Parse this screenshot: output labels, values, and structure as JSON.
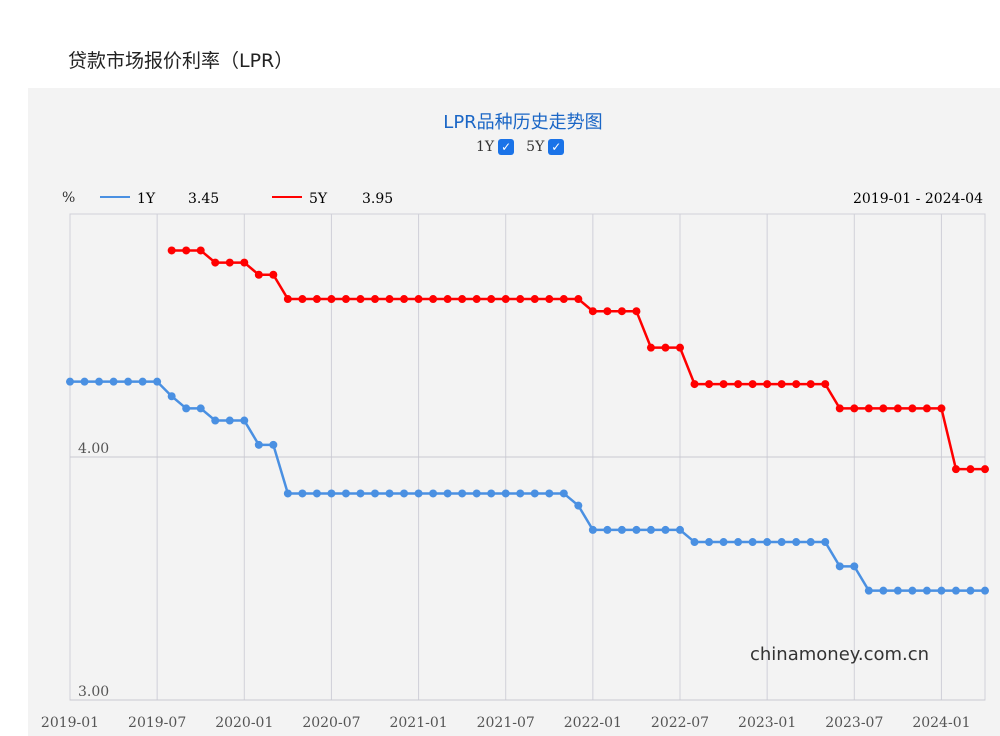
{
  "page_title": "贷款市场报价利率（LPR）",
  "toggles": [
    {
      "label": "1Y",
      "checked": true
    },
    {
      "label": "5Y",
      "checked": true
    }
  ],
  "legend": {
    "unit": "%",
    "items": [
      {
        "name": "1Y",
        "value": "3.45",
        "color": "#4a90e2"
      },
      {
        "name": "5Y",
        "value": "3.95",
        "color": "#ff0000"
      }
    ],
    "range": "2019-01 - 2024-04"
  },
  "watermark": "chinamoney.com.cn",
  "chart_data": {
    "type": "line",
    "title": "LPR品种历史走势图",
    "ylabel": "%",
    "ylim": [
      3.0,
      5.0
    ],
    "yticks": [
      "4.00",
      "3.00"
    ],
    "xticks": [
      "2019-01",
      "2019-07",
      "2020-01",
      "2020-07",
      "2021-01",
      "2021-07",
      "2022-01",
      "2022-07",
      "2023-01",
      "2023-07",
      "2024-01"
    ],
    "x_start": "2019-01",
    "x_end": "2024-04",
    "grid": true,
    "legend_position": "top-left",
    "series": [
      {
        "name": "1Y",
        "color": "#4a90e2",
        "start": "2019-01",
        "values": [
          4.31,
          4.31,
          4.31,
          4.31,
          4.31,
          4.31,
          4.31,
          4.25,
          4.2,
          4.2,
          4.15,
          4.15,
          4.15,
          4.05,
          4.05,
          3.85,
          3.85,
          3.85,
          3.85,
          3.85,
          3.85,
          3.85,
          3.85,
          3.85,
          3.85,
          3.85,
          3.85,
          3.85,
          3.85,
          3.85,
          3.85,
          3.85,
          3.85,
          3.85,
          3.85,
          3.8,
          3.7,
          3.7,
          3.7,
          3.7,
          3.7,
          3.7,
          3.7,
          3.65,
          3.65,
          3.65,
          3.65,
          3.65,
          3.65,
          3.65,
          3.65,
          3.65,
          3.65,
          3.55,
          3.55,
          3.45,
          3.45,
          3.45,
          3.45,
          3.45,
          3.45,
          3.45,
          3.45,
          3.45
        ]
      },
      {
        "name": "5Y",
        "color": "#ff0000",
        "start": "2019-08",
        "values": [
          4.85,
          4.85,
          4.85,
          4.8,
          4.8,
          4.8,
          4.75,
          4.75,
          4.65,
          4.65,
          4.65,
          4.65,
          4.65,
          4.65,
          4.65,
          4.65,
          4.65,
          4.65,
          4.65,
          4.65,
          4.65,
          4.65,
          4.65,
          4.65,
          4.65,
          4.65,
          4.65,
          4.65,
          4.65,
          4.6,
          4.6,
          4.6,
          4.6,
          4.45,
          4.45,
          4.45,
          4.3,
          4.3,
          4.3,
          4.3,
          4.3,
          4.3,
          4.3,
          4.3,
          4.3,
          4.3,
          4.2,
          4.2,
          4.2,
          4.2,
          4.2,
          4.2,
          4.2,
          4.2,
          3.95,
          3.95,
          3.95
        ]
      }
    ]
  }
}
